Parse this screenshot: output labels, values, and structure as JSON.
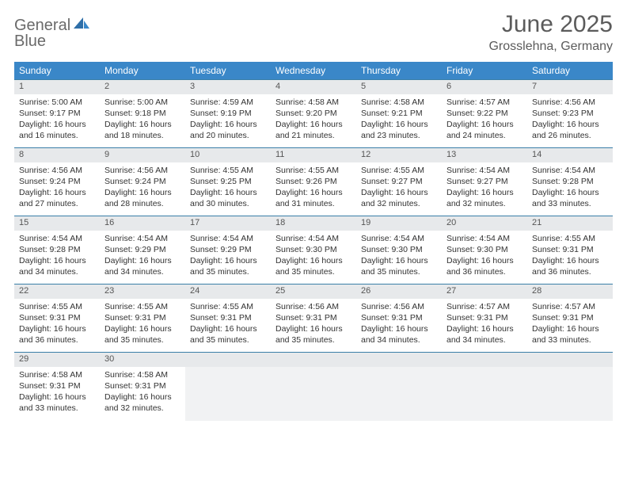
{
  "brand": {
    "word1": "General",
    "word2": "Blue"
  },
  "title": "June 2025",
  "location": "Grosslehna, Germany",
  "colors": {
    "header_bg": "#3a87c8",
    "header_text": "#ffffff",
    "daynum_bg": "#e7e9eb",
    "rule": "#3a7fa8",
    "brand_gray": "#6a6a6a",
    "brand_blue": "#3a7fc4"
  },
  "weekdays": [
    "Sunday",
    "Monday",
    "Tuesday",
    "Wednesday",
    "Thursday",
    "Friday",
    "Saturday"
  ],
  "weeks": [
    [
      {
        "n": "1",
        "sr": "5:00 AM",
        "ss": "9:17 PM",
        "dl": "16 hours and 16 minutes."
      },
      {
        "n": "2",
        "sr": "5:00 AM",
        "ss": "9:18 PM",
        "dl": "16 hours and 18 minutes."
      },
      {
        "n": "3",
        "sr": "4:59 AM",
        "ss": "9:19 PM",
        "dl": "16 hours and 20 minutes."
      },
      {
        "n": "4",
        "sr": "4:58 AM",
        "ss": "9:20 PM",
        "dl": "16 hours and 21 minutes."
      },
      {
        "n": "5",
        "sr": "4:58 AM",
        "ss": "9:21 PM",
        "dl": "16 hours and 23 minutes."
      },
      {
        "n": "6",
        "sr": "4:57 AM",
        "ss": "9:22 PM",
        "dl": "16 hours and 24 minutes."
      },
      {
        "n": "7",
        "sr": "4:56 AM",
        "ss": "9:23 PM",
        "dl": "16 hours and 26 minutes."
      }
    ],
    [
      {
        "n": "8",
        "sr": "4:56 AM",
        "ss": "9:24 PM",
        "dl": "16 hours and 27 minutes."
      },
      {
        "n": "9",
        "sr": "4:56 AM",
        "ss": "9:24 PM",
        "dl": "16 hours and 28 minutes."
      },
      {
        "n": "10",
        "sr": "4:55 AM",
        "ss": "9:25 PM",
        "dl": "16 hours and 30 minutes."
      },
      {
        "n": "11",
        "sr": "4:55 AM",
        "ss": "9:26 PM",
        "dl": "16 hours and 31 minutes."
      },
      {
        "n": "12",
        "sr": "4:55 AM",
        "ss": "9:27 PM",
        "dl": "16 hours and 32 minutes."
      },
      {
        "n": "13",
        "sr": "4:54 AM",
        "ss": "9:27 PM",
        "dl": "16 hours and 32 minutes."
      },
      {
        "n": "14",
        "sr": "4:54 AM",
        "ss": "9:28 PM",
        "dl": "16 hours and 33 minutes."
      }
    ],
    [
      {
        "n": "15",
        "sr": "4:54 AM",
        "ss": "9:28 PM",
        "dl": "16 hours and 34 minutes."
      },
      {
        "n": "16",
        "sr": "4:54 AM",
        "ss": "9:29 PM",
        "dl": "16 hours and 34 minutes."
      },
      {
        "n": "17",
        "sr": "4:54 AM",
        "ss": "9:29 PM",
        "dl": "16 hours and 35 minutes."
      },
      {
        "n": "18",
        "sr": "4:54 AM",
        "ss": "9:30 PM",
        "dl": "16 hours and 35 minutes."
      },
      {
        "n": "19",
        "sr": "4:54 AM",
        "ss": "9:30 PM",
        "dl": "16 hours and 35 minutes."
      },
      {
        "n": "20",
        "sr": "4:54 AM",
        "ss": "9:30 PM",
        "dl": "16 hours and 36 minutes."
      },
      {
        "n": "21",
        "sr": "4:55 AM",
        "ss": "9:31 PM",
        "dl": "16 hours and 36 minutes."
      }
    ],
    [
      {
        "n": "22",
        "sr": "4:55 AM",
        "ss": "9:31 PM",
        "dl": "16 hours and 36 minutes."
      },
      {
        "n": "23",
        "sr": "4:55 AM",
        "ss": "9:31 PM",
        "dl": "16 hours and 35 minutes."
      },
      {
        "n": "24",
        "sr": "4:55 AM",
        "ss": "9:31 PM",
        "dl": "16 hours and 35 minutes."
      },
      {
        "n": "25",
        "sr": "4:56 AM",
        "ss": "9:31 PM",
        "dl": "16 hours and 35 minutes."
      },
      {
        "n": "26",
        "sr": "4:56 AM",
        "ss": "9:31 PM",
        "dl": "16 hours and 34 minutes."
      },
      {
        "n": "27",
        "sr": "4:57 AM",
        "ss": "9:31 PM",
        "dl": "16 hours and 34 minutes."
      },
      {
        "n": "28",
        "sr": "4:57 AM",
        "ss": "9:31 PM",
        "dl": "16 hours and 33 minutes."
      }
    ],
    [
      {
        "n": "29",
        "sr": "4:58 AM",
        "ss": "9:31 PM",
        "dl": "16 hours and 33 minutes."
      },
      {
        "n": "30",
        "sr": "4:58 AM",
        "ss": "9:31 PM",
        "dl": "16 hours and 32 minutes."
      },
      null,
      null,
      null,
      null,
      null
    ]
  ],
  "labels": {
    "sunrise": "Sunrise:",
    "sunset": "Sunset:",
    "daylight": "Daylight:"
  }
}
